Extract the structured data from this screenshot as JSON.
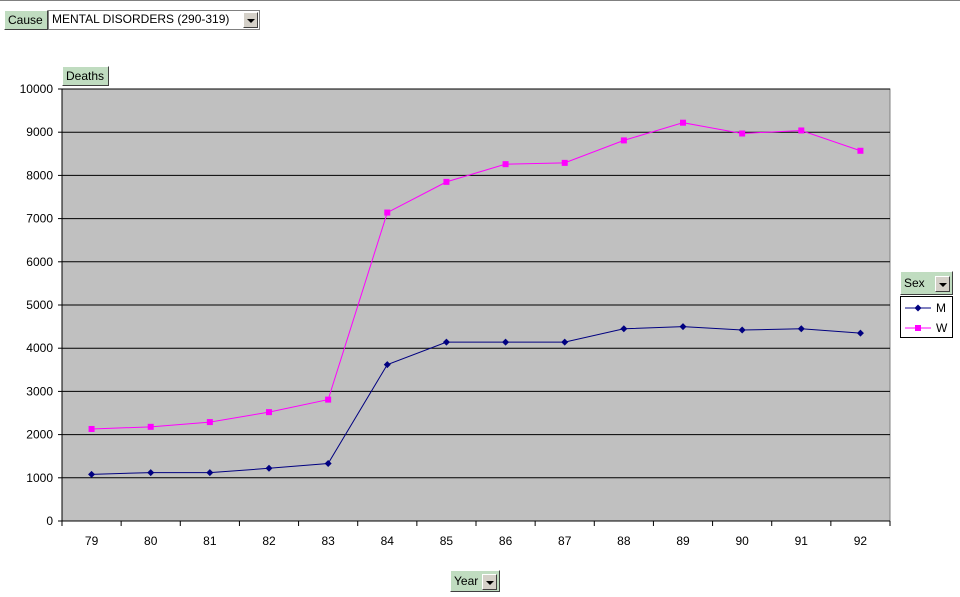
{
  "page_field": {
    "label": "Cause",
    "value": "MENTAL DISORDERS (290-319)"
  },
  "data_field": {
    "label": "Deaths"
  },
  "series_field": {
    "label": "Sex"
  },
  "category_field": {
    "label": "Year"
  },
  "colors": {
    "plot_area": "#c0c0c0",
    "M": "#000080",
    "W": "#ff00ff",
    "field_button": "#c0dcc0"
  },
  "chart_data": {
    "type": "line",
    "categories": [
      "79",
      "80",
      "81",
      "82",
      "83",
      "84",
      "85",
      "86",
      "87",
      "88",
      "89",
      "90",
      "91",
      "92"
    ],
    "series": [
      {
        "name": "M",
        "values": [
          1080,
          1120,
          1120,
          1220,
          1330,
          3620,
          4140,
          4140,
          4140,
          4450,
          4500,
          4420,
          4450,
          4350
        ]
      },
      {
        "name": "W",
        "values": [
          2130,
          2180,
          2290,
          2520,
          2810,
          7140,
          7850,
          8260,
          8290,
          8810,
          9220,
          8970,
          9040,
          8570
        ]
      }
    ],
    "ylim": [
      0,
      10000
    ],
    "yticks": [
      "0",
      "1000",
      "2000",
      "3000",
      "4000",
      "5000",
      "6000",
      "7000",
      "8000",
      "9000",
      "10000"
    ],
    "grid": true,
    "legend": "right"
  }
}
